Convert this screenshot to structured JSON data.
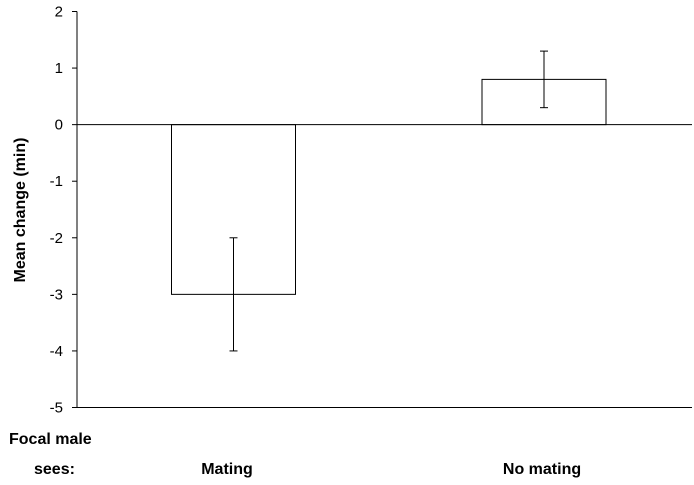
{
  "chart_data": {
    "type": "bar",
    "categories": [
      "Mating",
      "No mating"
    ],
    "values": [
      -3,
      0.8
    ],
    "error_high": [
      -2,
      1.3
    ],
    "error_low": [
      -4,
      0.3
    ],
    "ylabel": "Mean change (min)",
    "ylim": [
      -5,
      2
    ],
    "yticks": [
      "2",
      "1",
      "0",
      "-1",
      "-2",
      "-3",
      "-4",
      "-5"
    ],
    "x_axis_caption_line1": "Focal male",
    "x_axis_caption_line2": "sees:",
    "grid": false,
    "bar_fill": "#ffffff",
    "bar_stroke": "#000000"
  }
}
